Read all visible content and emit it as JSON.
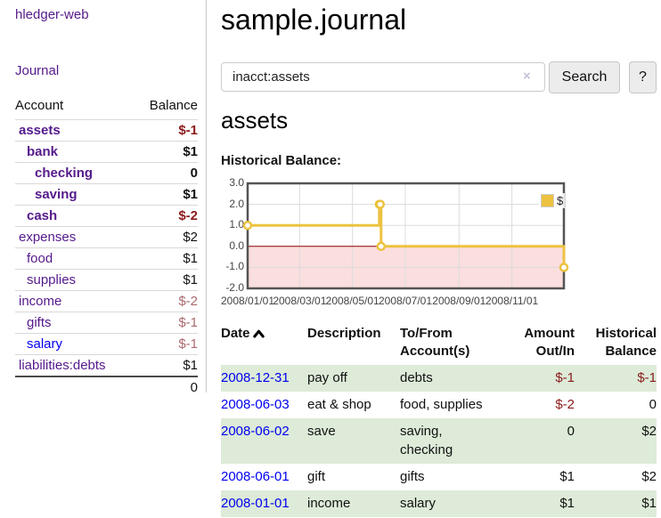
{
  "app_title": "hledger-web",
  "sidebar": {
    "journal_link": "Journal",
    "accounts": {
      "header_account": "Account",
      "header_balance": "Balance",
      "rows": [
        {
          "name": "assets",
          "balance": "$-1",
          "depth": 1,
          "bold": true,
          "negative": true,
          "blue": false
        },
        {
          "name": "bank",
          "balance": "$1",
          "depth": 2,
          "bold": true,
          "negative": false,
          "blue": false
        },
        {
          "name": "checking",
          "balance": "0",
          "depth": 3,
          "bold": true,
          "negative": false,
          "blue": false
        },
        {
          "name": "saving",
          "balance": "$1",
          "depth": 3,
          "bold": true,
          "negative": false,
          "blue": false
        },
        {
          "name": "cash",
          "balance": "$-2",
          "depth": 2,
          "bold": true,
          "negative": true,
          "blue": false
        },
        {
          "name": "expenses",
          "balance": "$2",
          "depth": 1,
          "bold": false,
          "negative": false,
          "blue": false
        },
        {
          "name": "food",
          "balance": "$1",
          "depth": 2,
          "bold": false,
          "negative": false,
          "blue": false
        },
        {
          "name": "supplies",
          "balance": "$1",
          "depth": 2,
          "bold": false,
          "negative": false,
          "blue": false
        },
        {
          "name": "income",
          "balance": "$-2",
          "depth": 1,
          "bold": false,
          "negative": true,
          "blue": false
        },
        {
          "name": "gifts",
          "balance": "$-1",
          "depth": 2,
          "bold": false,
          "negative": true,
          "blue": false
        },
        {
          "name": "salary",
          "balance": "$-1",
          "depth": 2,
          "bold": false,
          "negative": true,
          "blue": true
        },
        {
          "name": "liabilities:debts",
          "balance": "$1",
          "depth": 1,
          "bold": false,
          "negative": false,
          "blue": false
        }
      ],
      "total": "0"
    }
  },
  "main": {
    "title": "sample.journal",
    "search": {
      "value": "inacct:assets",
      "clear_icon": "×",
      "search_button": "Search",
      "help_button": "?"
    },
    "account_heading": "assets",
    "section_label": "Historical Balance:"
  },
  "chart_data": {
    "type": "line",
    "title": "Historical Balance",
    "step": true,
    "x_range": [
      "2008/01/01",
      "2008/12/31"
    ],
    "y_range": [
      -2,
      3
    ],
    "x_ticks": [
      "2008/01/01",
      "2008/03/01",
      "2008/05/01",
      "2008/07/01",
      "2008/09/01",
      "2008/11/01"
    ],
    "y_ticks": [
      3,
      2,
      1,
      0,
      -1,
      -2
    ],
    "y_tick_labels": [
      "3.0",
      "2.0",
      "1.0",
      "0.0",
      "-1.0",
      "-2.0"
    ],
    "series": [
      {
        "name": "$",
        "color": "#edc240",
        "points": [
          [
            "2008/01/01",
            1
          ],
          [
            "2008/06/01",
            2
          ],
          [
            "2008/06/02",
            2
          ],
          [
            "2008/06/03",
            0
          ],
          [
            "2008/12/31",
            -1
          ]
        ]
      }
    ],
    "grid": true,
    "legend_position": "top-right",
    "negative_fill": "#fbdede",
    "zero_line_color": "#8b0000",
    "border_color": "#545454",
    "grid_color": "#dcdcdc"
  },
  "register": {
    "headers": {
      "date": "Date",
      "description": "Description",
      "tofrom": "To/From Account(s)",
      "amount": "Amount Out/In",
      "balance": "Historical Balance"
    },
    "sort": "ascending",
    "rows": [
      {
        "date": "2008-12-31",
        "description": "pay off",
        "accounts": "debts",
        "amount": "$-1",
        "balance": "$-1"
      },
      {
        "date": "2008-06-03",
        "description": "eat & shop",
        "accounts": "food, supplies",
        "amount": "$-2",
        "balance": "0"
      },
      {
        "date": "2008-06-02",
        "description": "save",
        "accounts": "saving, checking",
        "amount": "0",
        "balance": "$2"
      },
      {
        "date": "2008-06-01",
        "description": "gift",
        "accounts": "gifts",
        "amount": "$1",
        "balance": "$2"
      },
      {
        "date": "2008-01-01",
        "description": "income",
        "accounts": "salary",
        "amount": "$1",
        "balance": "$1"
      }
    ]
  }
}
